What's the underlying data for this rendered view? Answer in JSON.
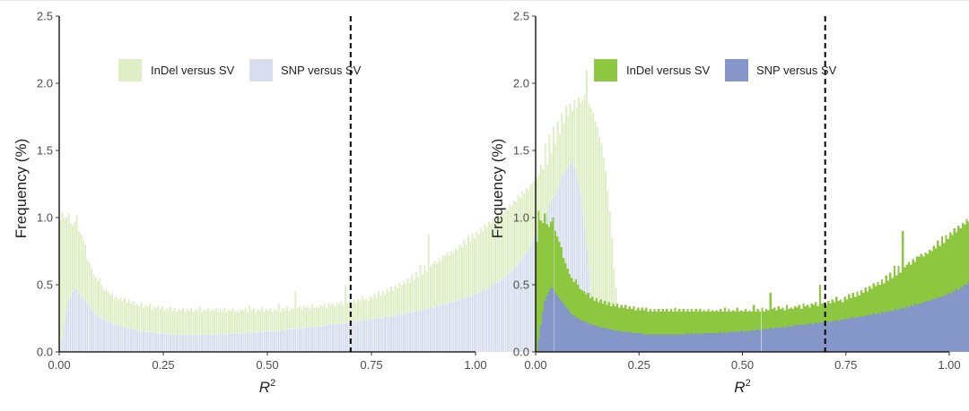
{
  "chart_data": [
    {
      "type": "bar",
      "panel": "left",
      "xlabel": "R",
      "xlabel_sup": "2",
      "ylabel": "Frequency (%)",
      "xlim": [
        0,
        1
      ],
      "ylim": [
        0,
        2.5
      ],
      "xticks": [
        "0.00",
        "0.25",
        "0.50",
        "0.75",
        "1.00"
      ],
      "yticks": [
        "0.0",
        "0.5",
        "1.0",
        "1.5",
        "2.0",
        "2.5"
      ],
      "threshold_x": 0.7,
      "legend_position": "top",
      "grid": false,
      "series": [
        {
          "name": "InDel versus SV",
          "color": "#dfeec5",
          "values": "indel"
        },
        {
          "name": "SNP versus SV",
          "color": "#d7deed",
          "values": "snp"
        }
      ],
      "bin_width": 0.005,
      "x_start": 0.0,
      "indel": [
        0.98,
        1.05,
        1.0,
        1.0,
        1.03,
        0.96,
        0.94,
        0.97,
        1.02,
        0.9,
        0.88,
        0.83,
        0.8,
        0.69,
        0.67,
        0.62,
        0.58,
        0.56,
        0.53,
        0.55,
        0.5,
        0.46,
        0.47,
        0.45,
        0.43,
        0.44,
        0.4,
        0.42,
        0.39,
        0.41,
        0.38,
        0.4,
        0.37,
        0.39,
        0.36,
        0.38,
        0.35,
        0.36,
        0.34,
        0.37,
        0.33,
        0.35,
        0.34,
        0.36,
        0.32,
        0.34,
        0.33,
        0.35,
        0.32,
        0.34,
        0.31,
        0.33,
        0.32,
        0.34,
        0.31,
        0.33,
        0.3,
        0.32,
        0.31,
        0.33,
        0.3,
        0.32,
        0.31,
        0.33,
        0.3,
        0.32,
        0.31,
        0.34,
        0.3,
        0.32,
        0.31,
        0.33,
        0.3,
        0.32,
        0.31,
        0.33,
        0.3,
        0.32,
        0.3,
        0.33,
        0.3,
        0.32,
        0.31,
        0.33,
        0.3,
        0.31,
        0.3,
        0.32,
        0.31,
        0.33,
        0.3,
        0.35,
        0.31,
        0.33,
        0.3,
        0.32,
        0.31,
        0.34,
        0.3,
        0.32,
        0.31,
        0.33,
        0.3,
        0.32,
        0.31,
        0.36,
        0.3,
        0.33,
        0.31,
        0.34,
        0.31,
        0.33,
        0.32,
        0.45,
        0.33,
        0.34,
        0.32,
        0.35,
        0.33,
        0.34,
        0.32,
        0.36,
        0.33,
        0.34,
        0.33,
        0.35,
        0.34,
        0.36,
        0.33,
        0.37,
        0.35,
        0.36,
        0.34,
        0.37,
        0.36,
        0.38,
        0.35,
        0.5,
        0.37,
        0.38,
        0.36,
        0.39,
        0.37,
        0.4,
        0.38,
        0.42,
        0.39,
        0.4,
        0.38,
        0.42,
        0.4,
        0.44,
        0.41,
        0.45,
        0.42,
        0.46,
        0.43,
        0.47,
        0.45,
        0.49,
        0.46,
        0.5,
        0.48,
        0.52,
        0.5,
        0.53,
        0.51,
        0.55,
        0.52,
        0.58,
        0.54,
        0.6,
        0.56,
        0.65,
        0.58,
        0.65,
        0.6,
        0.88,
        0.64,
        0.66,
        0.68,
        0.66,
        0.7,
        0.68,
        0.72,
        0.72,
        0.74,
        0.72,
        0.75,
        0.74,
        0.77,
        0.76,
        0.8,
        0.78,
        0.84,
        0.8,
        0.87,
        0.82,
        0.88,
        0.85,
        0.9,
        0.88,
        0.93,
        0.9,
        0.95,
        0.93,
        0.97,
        0.96,
        1.0,
        0.98,
        1.02,
        1.01,
        1.05,
        1.03,
        1.08,
        1.06,
        1.1,
        1.09,
        1.13,
        1.12,
        1.17,
        1.15,
        1.2,
        1.18,
        1.22,
        1.21,
        1.25,
        1.26,
        1.28,
        1.3,
        1.33,
        1.4,
        1.36,
        1.55,
        1.4,
        1.62,
        1.48,
        1.68,
        1.55,
        1.72,
        1.62,
        1.78,
        1.7,
        1.83,
        1.76,
        1.85,
        1.8,
        1.88,
        1.82,
        1.9,
        1.86,
        1.88,
        1.92,
        2.1,
        1.85,
        1.82,
        1.78,
        1.72,
        1.68,
        1.6,
        1.55,
        1.45,
        1.35,
        1.2,
        1.05,
        0.85,
        0.62,
        0.48,
        0.3
      ],
      "snp": [
        0.0,
        0.1,
        0.2,
        0.3,
        0.38,
        0.42,
        0.45,
        0.48,
        0.47,
        0.44,
        0.42,
        0.4,
        0.38,
        0.36,
        0.34,
        0.32,
        0.3,
        0.28,
        0.27,
        0.26,
        0.25,
        0.24,
        0.23,
        0.23,
        0.22,
        0.21,
        0.21,
        0.2,
        0.2,
        0.19,
        0.19,
        0.18,
        0.18,
        0.18,
        0.17,
        0.17,
        0.17,
        0.16,
        0.16,
        0.16,
        0.16,
        0.15,
        0.15,
        0.15,
        0.15,
        0.15,
        0.14,
        0.14,
        0.14,
        0.14,
        0.14,
        0.14,
        0.13,
        0.13,
        0.13,
        0.13,
        0.13,
        0.13,
        0.13,
        0.13,
        0.13,
        0.13,
        0.13,
        0.13,
        0.13,
        0.13,
        0.13,
        0.13,
        0.13,
        0.13,
        0.13,
        0.13,
        0.13,
        0.14,
        0.13,
        0.14,
        0.13,
        0.14,
        0.13,
        0.14,
        0.13,
        0.14,
        0.14,
        0.14,
        0.14,
        0.14,
        0.14,
        0.14,
        0.14,
        0.15,
        0.14,
        0.15,
        0.14,
        0.15,
        0.15,
        0.15,
        0.15,
        0.15,
        0.15,
        0.16,
        0.15,
        0.16,
        0.15,
        0.16,
        0.16,
        0.16,
        0.16,
        0.17,
        0.16,
        0.17,
        0.17,
        0.17,
        0.17,
        0.18,
        0.17,
        0.18,
        0.18,
        0.18,
        0.18,
        0.19,
        0.18,
        0.19,
        0.19,
        0.19,
        0.19,
        0.2,
        0.2,
        0.2,
        0.2,
        0.21,
        0.2,
        0.21,
        0.21,
        0.21,
        0.21,
        0.22,
        0.21,
        0.22,
        0.22,
        0.22,
        0.22,
        0.23,
        0.22,
        0.23,
        0.23,
        0.24,
        0.23,
        0.24,
        0.24,
        0.25,
        0.24,
        0.25,
        0.25,
        0.26,
        0.25,
        0.26,
        0.26,
        0.27,
        0.26,
        0.27,
        0.27,
        0.28,
        0.27,
        0.29,
        0.28,
        0.29,
        0.28,
        0.3,
        0.29,
        0.3,
        0.3,
        0.31,
        0.3,
        0.32,
        0.31,
        0.32,
        0.32,
        0.33,
        0.32,
        0.34,
        0.33,
        0.35,
        0.34,
        0.36,
        0.35,
        0.36,
        0.36,
        0.37,
        0.37,
        0.38,
        0.38,
        0.39,
        0.39,
        0.4,
        0.4,
        0.41,
        0.41,
        0.42,
        0.42,
        0.44,
        0.43,
        0.45,
        0.45,
        0.47,
        0.46,
        0.48,
        0.48,
        0.5,
        0.5,
        0.52,
        0.52,
        0.54,
        0.54,
        0.56,
        0.56,
        0.58,
        0.59,
        0.61,
        0.62,
        0.64,
        0.66,
        0.68,
        0.7,
        0.72,
        0.74,
        0.76,
        0.79,
        0.82,
        0.85,
        0.88,
        0.92,
        0.95,
        0.99,
        1.02,
        1.06,
        1.1,
        1.13,
        1.15,
        1.18,
        1.22,
        1.26,
        1.3,
        1.33,
        1.36,
        1.38,
        1.4,
        1.42,
        1.38,
        1.32,
        1.25,
        1.18,
        1.05,
        0.92,
        0.78,
        0.62,
        0.45,
        0.3,
        0.15,
        0.05
      ]
    },
    {
      "type": "bar",
      "panel": "right",
      "xlabel": "R",
      "xlabel_sup": "2",
      "ylabel": "Frequency (%)",
      "xlim": [
        0,
        1
      ],
      "ylim": [
        0,
        2.5
      ],
      "xticks": [
        "0.00",
        "0.25",
        "0.50",
        "0.75",
        "1.00"
      ],
      "yticks": [
        "0.0",
        "0.5",
        "1.0",
        "1.5",
        "2.0",
        "2.5"
      ],
      "threshold_x": 0.7,
      "legend_position": "top",
      "grid": false,
      "series": [
        {
          "name": "InDel versus SV",
          "color": "#8dc63f",
          "values": "indel"
        },
        {
          "name": "SNP versus SV",
          "color": "#8597c9",
          "values": "snp"
        }
      ],
      "bin_width": 0.005,
      "x_start": 0.0,
      "indel": [
        0.82,
        1.05,
        0.98,
        0.96,
        1.03,
        0.95,
        0.93,
        0.97,
        1.0,
        0.9,
        0.86,
        0.82,
        0.78,
        0.7,
        0.66,
        0.62,
        0.58,
        0.55,
        0.52,
        0.54,
        0.5,
        0.47,
        0.46,
        0.45,
        0.43,
        0.44,
        0.4,
        0.41,
        0.38,
        0.4,
        0.37,
        0.39,
        0.36,
        0.38,
        0.35,
        0.37,
        0.34,
        0.36,
        0.34,
        0.36,
        0.33,
        0.35,
        0.33,
        0.35,
        0.32,
        0.34,
        0.32,
        0.34,
        0.31,
        0.33,
        0.31,
        0.33,
        0.31,
        0.33,
        0.3,
        0.32,
        0.3,
        0.32,
        0.3,
        0.32,
        0.3,
        0.32,
        0.3,
        0.32,
        0.3,
        0.32,
        0.3,
        0.33,
        0.3,
        0.32,
        0.3,
        0.32,
        0.3,
        0.32,
        0.3,
        0.32,
        0.3,
        0.32,
        0.3,
        0.32,
        0.3,
        0.31,
        0.3,
        0.32,
        0.3,
        0.31,
        0.3,
        0.31,
        0.3,
        0.32,
        0.3,
        0.33,
        0.3,
        0.32,
        0.3,
        0.31,
        0.3,
        0.33,
        0.3,
        0.31,
        0.3,
        0.32,
        0.3,
        0.31,
        0.3,
        0.35,
        0.3,
        0.32,
        0.3,
        0.33,
        0.3,
        0.32,
        0.31,
        0.44,
        0.32,
        0.33,
        0.31,
        0.34,
        0.32,
        0.33,
        0.31,
        0.35,
        0.32,
        0.33,
        0.32,
        0.34,
        0.33,
        0.35,
        0.32,
        0.36,
        0.34,
        0.35,
        0.33,
        0.36,
        0.35,
        0.37,
        0.34,
        0.5,
        0.36,
        0.37,
        0.35,
        0.38,
        0.36,
        0.39,
        0.37,
        0.41,
        0.38,
        0.39,
        0.37,
        0.41,
        0.39,
        0.43,
        0.4,
        0.44,
        0.41,
        0.45,
        0.42,
        0.46,
        0.44,
        0.48,
        0.45,
        0.49,
        0.47,
        0.51,
        0.49,
        0.52,
        0.5,
        0.54,
        0.51,
        0.57,
        0.53,
        0.59,
        0.55,
        0.64,
        0.57,
        0.64,
        0.59,
        0.9,
        0.63,
        0.65,
        0.67,
        0.65,
        0.69,
        0.67,
        0.71,
        0.71,
        0.73,
        0.71,
        0.74,
        0.73,
        0.76,
        0.75,
        0.79,
        0.77,
        0.83,
        0.79,
        0.86,
        0.81,
        0.87,
        0.84,
        0.89,
        0.87,
        0.92,
        0.89,
        0.94,
        0.92,
        0.96,
        0.95,
        0.99,
        0.97,
        1.01,
        1.0,
        1.04,
        1.02,
        1.07,
        1.05,
        1.09,
        1.08,
        1.12,
        1.11,
        1.16,
        1.14,
        1.19,
        1.17,
        1.21,
        1.2,
        1.24,
        1.25,
        1.27,
        1.29,
        1.32,
        1.39,
        1.35,
        1.54,
        1.39,
        1.61,
        1.47,
        1.67,
        1.54,
        1.71,
        1.61,
        1.77,
        1.69,
        1.82,
        1.75,
        1.84,
        1.79,
        1.87,
        1.81,
        1.89,
        1.85,
        1.87,
        1.91,
        2.1,
        1.84,
        1.81,
        1.77,
        1.71,
        1.67,
        1.59,
        1.54,
        1.44,
        1.34,
        1.19,
        1.04,
        0.84,
        0.61,
        0.47,
        0.29
      ],
      "snp": [
        0.0,
        0.1,
        0.2,
        0.3,
        0.38,
        0.42,
        0.45,
        0.48,
        0.47,
        0.44,
        0.42,
        0.4,
        0.38,
        0.36,
        0.34,
        0.32,
        0.3,
        0.28,
        0.27,
        0.26,
        0.25,
        0.24,
        0.23,
        0.23,
        0.22,
        0.21,
        0.21,
        0.2,
        0.2,
        0.19,
        0.19,
        0.18,
        0.18,
        0.18,
        0.17,
        0.17,
        0.17,
        0.16,
        0.16,
        0.16,
        0.16,
        0.15,
        0.15,
        0.15,
        0.15,
        0.15,
        0.14,
        0.14,
        0.14,
        0.14,
        0.14,
        0.14,
        0.13,
        0.13,
        0.13,
        0.13,
        0.13,
        0.13,
        0.13,
        0.13,
        0.13,
        0.13,
        0.13,
        0.13,
        0.13,
        0.13,
        0.13,
        0.13,
        0.13,
        0.13,
        0.13,
        0.13,
        0.13,
        0.14,
        0.13,
        0.14,
        0.13,
        0.14,
        0.13,
        0.14,
        0.13,
        0.14,
        0.14,
        0.14,
        0.14,
        0.14,
        0.14,
        0.14,
        0.14,
        0.15,
        0.14,
        0.15,
        0.14,
        0.15,
        0.15,
        0.15,
        0.15,
        0.15,
        0.15,
        0.16,
        0.15,
        0.16,
        0.15,
        0.16,
        0.16,
        0.16,
        0.16,
        0.17,
        0.16,
        0.17,
        0.17,
        0.17,
        0.17,
        0.18,
        0.17,
        0.18,
        0.18,
        0.18,
        0.18,
        0.19,
        0.18,
        0.19,
        0.19,
        0.19,
        0.19,
        0.2,
        0.2,
        0.2,
        0.2,
        0.21,
        0.2,
        0.21,
        0.21,
        0.21,
        0.21,
        0.22,
        0.21,
        0.22,
        0.22,
        0.22,
        0.22,
        0.23,
        0.22,
        0.23,
        0.23,
        0.24,
        0.23,
        0.24,
        0.24,
        0.25,
        0.24,
        0.25,
        0.25,
        0.26,
        0.25,
        0.26,
        0.26,
        0.27,
        0.26,
        0.27,
        0.27,
        0.28,
        0.27,
        0.29,
        0.28,
        0.29,
        0.28,
        0.3,
        0.29,
        0.3,
        0.3,
        0.31,
        0.3,
        0.32,
        0.31,
        0.32,
        0.32,
        0.33,
        0.32,
        0.34,
        0.33,
        0.35,
        0.34,
        0.36,
        0.35,
        0.36,
        0.36,
        0.37,
        0.37,
        0.38,
        0.38,
        0.39,
        0.39,
        0.4,
        0.4,
        0.41,
        0.41,
        0.42,
        0.42,
        0.44,
        0.43,
        0.45,
        0.45,
        0.47,
        0.46,
        0.48,
        0.48,
        0.5,
        0.5,
        0.52,
        0.52,
        0.54,
        0.54,
        0.56,
        0.56,
        0.58,
        0.59,
        0.61,
        0.62,
        0.64,
        0.66,
        0.68,
        0.7,
        0.72,
        0.74,
        0.76,
        0.79,
        0.82,
        0.85,
        0.88,
        0.92,
        0.95,
        0.99,
        1.02,
        1.06,
        1.1,
        1.13,
        1.15,
        1.18,
        1.22,
        1.26,
        1.3,
        1.33,
        1.36,
        1.38,
        1.4,
        1.42,
        1.38,
        1.32,
        1.25,
        1.18,
        1.05,
        0.92,
        0.78,
        0.62,
        0.45,
        0.3,
        0.15,
        0.05
      ]
    }
  ]
}
